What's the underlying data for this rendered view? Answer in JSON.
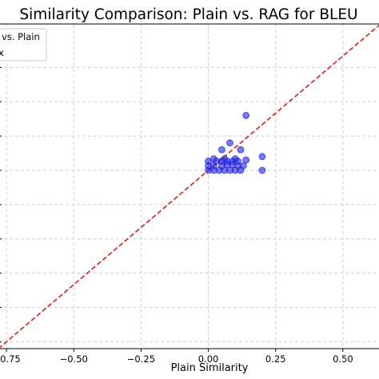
{
  "chart_data": {
    "type": "scatter",
    "title": "Similarity Comparison: Plain vs. RAG for BLEU",
    "xlabel": "Plain Similarity",
    "ylabel": "",
    "xlim": [
      -0.78,
      0.64
    ],
    "ylim": [
      -0.78,
      0.64
    ],
    "x_ticks": [
      -0.75,
      -0.5,
      -0.25,
      0.0,
      0.25,
      0.5
    ],
    "x_tick_labels": [
      "−0.75",
      "−0.50",
      "−0.25",
      "0.00",
      "0.25",
      "0.50"
    ],
    "y_ticks": [
      -0.75,
      -0.6,
      -0.45,
      -0.3,
      -0.15,
      0.0,
      0.15,
      0.3,
      0.45
    ],
    "grid": true,
    "legend": {
      "placement": "top-left",
      "entries": [
        {
          "label": "vs. Plain",
          "marker": "circle",
          "color": "#1f1fdd"
        },
        {
          "label": "x",
          "marker": "dashed-line",
          "color": "#d62728"
        }
      ]
    },
    "series": [
      {
        "marker": "circle",
        "color": "#1f1fdd",
        "points": [
          {
            "x": 0.14,
            "y": 0.24
          },
          {
            "x": 0.08,
            "y": 0.12
          },
          {
            "x": 0.05,
            "y": 0.09
          },
          {
            "x": 0.12,
            "y": 0.09
          },
          {
            "x": 0.02,
            "y": 0.05
          },
          {
            "x": 0.06,
            "y": 0.05
          },
          {
            "x": 0.1,
            "y": 0.05
          },
          {
            "x": 0.2,
            "y": 0.06
          },
          {
            "x": 0.0,
            "y": 0.04
          },
          {
            "x": 0.03,
            "y": 0.04
          },
          {
            "x": 0.05,
            "y": 0.04
          },
          {
            "x": 0.07,
            "y": 0.04
          },
          {
            "x": 0.09,
            "y": 0.04
          },
          {
            "x": 0.11,
            "y": 0.04
          },
          {
            "x": 0.14,
            "y": 0.045
          },
          {
            "x": 0.0,
            "y": 0.02
          },
          {
            "x": 0.02,
            "y": 0.02
          },
          {
            "x": 0.05,
            "y": 0.02
          },
          {
            "x": 0.07,
            "y": 0.025
          },
          {
            "x": 0.09,
            "y": 0.025
          },
          {
            "x": 0.11,
            "y": 0.02
          },
          {
            "x": 0.13,
            "y": 0.02
          },
          {
            "x": 0.0,
            "y": 0.0
          },
          {
            "x": 0.02,
            "y": 0.0
          },
          {
            "x": 0.04,
            "y": 0.0
          },
          {
            "x": 0.06,
            "y": 0.0
          },
          {
            "x": 0.08,
            "y": 0.0
          },
          {
            "x": 0.1,
            "y": 0.0
          },
          {
            "x": 0.12,
            "y": 0.0
          },
          {
            "x": 0.2,
            "y": 0.0
          }
        ]
      },
      {
        "name": "x",
        "type": "line",
        "style": "dashed",
        "color": "#d62728",
        "x": [
          -0.78,
          0.64
        ],
        "y": [
          -0.78,
          0.64
        ]
      }
    ]
  }
}
